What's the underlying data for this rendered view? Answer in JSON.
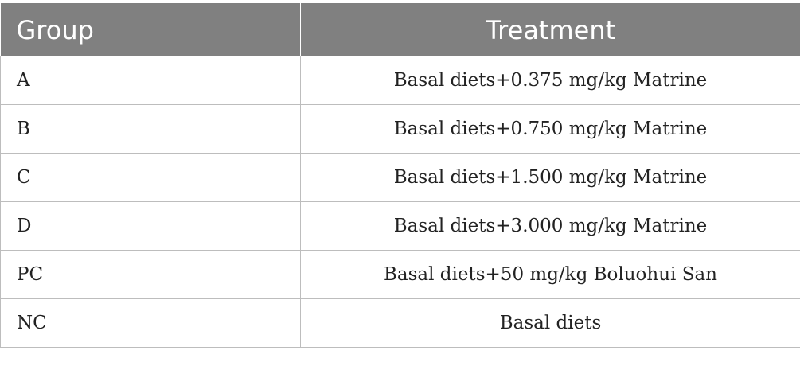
{
  "table": {
    "headers": [
      "Group",
      "Treatment"
    ],
    "rows": [
      {
        "group": "A",
        "treatment": "Basal diets+0.375 mg/kg Matrine"
      },
      {
        "group": "B",
        "treatment": "Basal diets+0.750 mg/kg Matrine"
      },
      {
        "group": "C",
        "treatment": "Basal diets+1.500 mg/kg Matrine"
      },
      {
        "group": "D",
        "treatment": "Basal diets+3.000 mg/kg Matrine"
      },
      {
        "group": "PC",
        "treatment": "Basal diets+50 mg/kg Boluohui San"
      },
      {
        "group": "NC",
        "treatment": "Basal diets"
      }
    ]
  },
  "colors": {
    "header_bg": "#808080",
    "header_text": "#ffffff",
    "border": "#bdbdbd"
  }
}
